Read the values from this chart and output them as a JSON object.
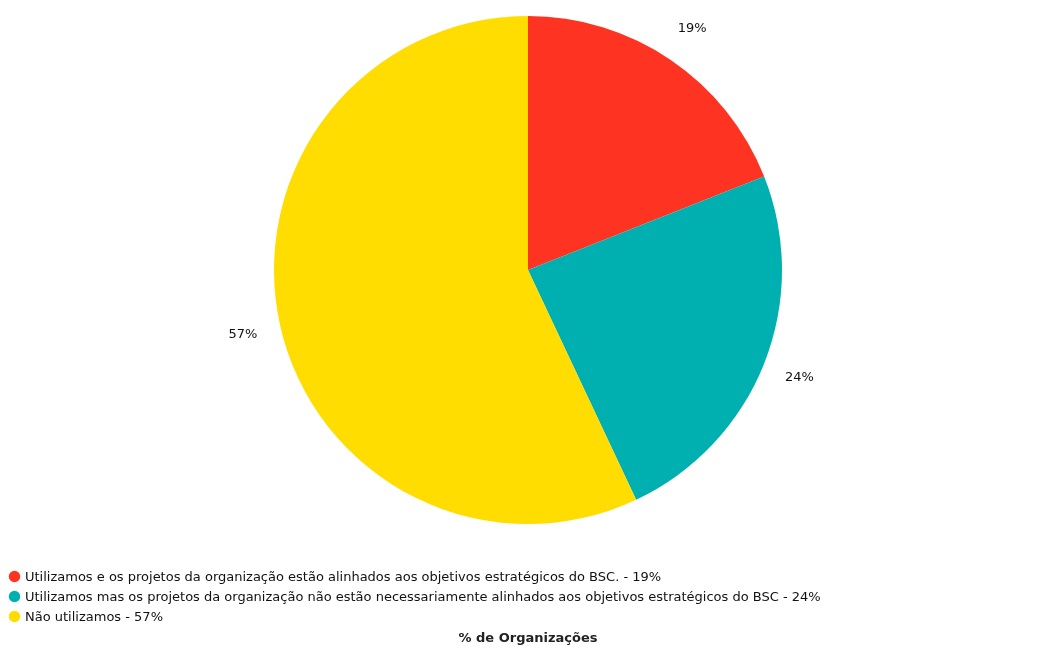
{
  "chart_data": {
    "type": "pie",
    "title": "% de Organizações",
    "categories": [
      "Utilizamos e os projetos da organização estão alinhados aos objetivos estratégicos do BSC. - 19%",
      "Utilizamos mas os projetos da organização não estão necessariamente alinhados aos objetivos estratégicos do BSC - 24%",
      "Não utilizamos - 57%"
    ],
    "values": [
      19,
      24,
      57
    ],
    "value_labels": [
      "19%",
      "24%",
      "57%"
    ],
    "colors": [
      "#ff3322",
      "#00b0b0",
      "#ffdd00"
    ],
    "legend": "bottom"
  }
}
